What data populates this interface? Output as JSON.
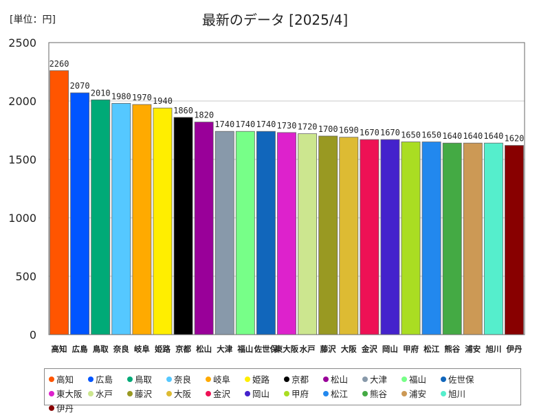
{
  "header": {
    "unit_label": "[単位：円]",
    "title": "最新のデータ [2025/4]"
  },
  "chart_data": {
    "type": "bar",
    "title": "最新のデータ [2025/4]",
    "unit": "[単位：円]",
    "ylim": [
      0,
      2500
    ],
    "yticks": [
      0,
      500,
      1000,
      1500,
      2000,
      2500
    ],
    "grid": true,
    "legend_position": "bottom",
    "categories": [
      "高知",
      "広島",
      "鳥取",
      "奈良",
      "岐阜",
      "姫路",
      "京都",
      "松山",
      "大津",
      "福山",
      "佐世保",
      "東大阪",
      "水戸",
      "藤沢",
      "大阪",
      "金沢",
      "岡山",
      "甲府",
      "松江",
      "熊谷",
      "浦安",
      "旭川",
      "伊丹"
    ],
    "values": [
      2260,
      2070,
      2010,
      1980,
      1970,
      1940,
      1860,
      1820,
      1740,
      1740,
      1740,
      1730,
      1720,
      1700,
      1690,
      1670,
      1670,
      1650,
      1650,
      1640,
      1640,
      1640,
      1620
    ],
    "colors": [
      "#ff5500",
      "#0055ff",
      "#00aa77",
      "#55c8ff",
      "#ffaa00",
      "#ffee00",
      "#000000",
      "#990099",
      "#8899aa",
      "#77ff88",
      "#1166bb",
      "#dd22cc",
      "#cce68f",
      "#999922",
      "#ddbb33",
      "#ee1155",
      "#4422cc",
      "#aadd22",
      "#2288ee",
      "#44aa44",
      "#cc9955",
      "#55eecc",
      "#880000"
    ]
  }
}
